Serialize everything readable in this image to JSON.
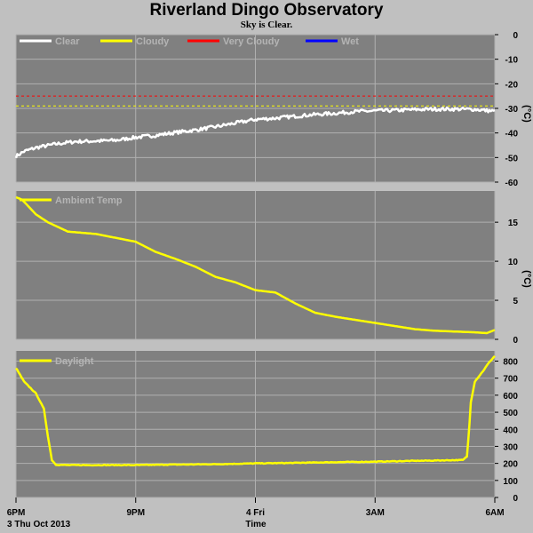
{
  "page": {
    "title": "Riverland Dingo Observatory",
    "subtitle": "Sky is Clear."
  },
  "x_axis": {
    "ticks": [
      "6PM",
      "9PM",
      "4 Fri",
      "3AM",
      "6AM"
    ],
    "date_label": "3 Thu Oct 2013",
    "label": "Time"
  },
  "colors": {
    "panel_bg": "#808080",
    "page_bg": "#c0c0c0",
    "grid": "#b0b0b0",
    "clear": "#ffffff",
    "cloudy": "#ffff00",
    "very_cloudy": "#ff0000",
    "wet": "#0000ff",
    "ambient": "#ffff00",
    "daylight": "#ffff00"
  },
  "chart_data": [
    {
      "type": "line",
      "name": "sky-temperature",
      "ylabel": "(°C)",
      "ylim": [
        -60,
        0
      ],
      "yticks": [
        0,
        -10,
        -20,
        -30,
        -40,
        -50,
        -60
      ],
      "grid": true,
      "legend_placement": "top-left",
      "legend": [
        {
          "label": "Clear",
          "color": "#ffffff"
        },
        {
          "label": "Cloudy",
          "color": "#ffff00"
        },
        {
          "label": "Very Cloudy",
          "color": "#ff0000"
        },
        {
          "label": "Wet",
          "color": "#0000ff"
        }
      ],
      "thresholds": [
        {
          "label": "Very Cloudy",
          "value": -25,
          "color": "#ff0000"
        },
        {
          "label": "Cloudy",
          "value": -29,
          "color": "#ffff00"
        }
      ],
      "x_hours": [
        0,
        0.2,
        0.5,
        1,
        1.5,
        2,
        2.5,
        3,
        3.5,
        4,
        4.5,
        5,
        5.5,
        6,
        6.5,
        7,
        7.5,
        8,
        8.5,
        9,
        9.5,
        10,
        10.5,
        11,
        11.5,
        12
      ],
      "series": [
        {
          "name": "Clear",
          "color": "#ffffff",
          "values": [
            -49.5,
            -47.5,
            -46,
            -44.5,
            -43.5,
            -43.3,
            -43,
            -41.8,
            -41,
            -39.8,
            -38.8,
            -37.5,
            -36,
            -34.5,
            -34,
            -33.2,
            -32.5,
            -32,
            -31.3,
            -31,
            -30.8,
            -30.5,
            -30.3,
            -30.3,
            -30.4,
            -31.2
          ]
        }
      ]
    },
    {
      "type": "line",
      "name": "ambient-temperature",
      "ylabel": "(°C)",
      "ylim": [
        0,
        19
      ],
      "yticks": [
        0,
        5,
        10,
        15
      ],
      "grid": true,
      "legend_placement": "top-left",
      "legend": [
        {
          "label": "Ambient Temp",
          "color": "#ffff00"
        }
      ],
      "x_hours": [
        0,
        0.15,
        0.5,
        0.8,
        1.3,
        2,
        2.5,
        3,
        3.5,
        4,
        4.5,
        5,
        5.5,
        6,
        6.5,
        7,
        7.5,
        8,
        8.5,
        9,
        9.5,
        10,
        10.5,
        11,
        11.5,
        11.8,
        12
      ],
      "series": [
        {
          "name": "Ambient Temp",
          "color": "#ffff00",
          "values": [
            18.2,
            17.9,
            16,
            15,
            13.8,
            13.5,
            13,
            12.5,
            11.2,
            10.3,
            9.3,
            8,
            7.3,
            6.3,
            6,
            4.6,
            3.4,
            2.9,
            2.5,
            2.1,
            1.7,
            1.3,
            1.1,
            1.0,
            0.9,
            0.8,
            1.2
          ]
        }
      ]
    },
    {
      "type": "line",
      "name": "daylight",
      "ylabel": "",
      "ylim": [
        0,
        860
      ],
      "yticks": [
        0,
        100,
        200,
        300,
        400,
        500,
        600,
        700,
        800
      ],
      "grid": true,
      "legend_placement": "top-left",
      "legend": [
        {
          "label": "Daylight",
          "color": "#ffff00"
        }
      ],
      "x_hours": [
        0,
        0.2,
        0.5,
        0.7,
        0.8,
        0.9,
        1.0,
        1.3,
        2,
        3,
        4,
        5,
        6,
        7,
        8,
        9,
        10,
        10.8,
        11.2,
        11.3,
        11.35,
        11.4,
        11.5,
        11.7,
        11.85,
        12
      ],
      "series": [
        {
          "name": "Daylight",
          "color": "#ffff00",
          "values": [
            760,
            680,
            610,
            520,
            360,
            220,
            192,
            190,
            190,
            190,
            193,
            195,
            200,
            203,
            207,
            210,
            215,
            218,
            220,
            240,
            380,
            560,
            680,
            740,
            790,
            830
          ]
        }
      ]
    }
  ]
}
